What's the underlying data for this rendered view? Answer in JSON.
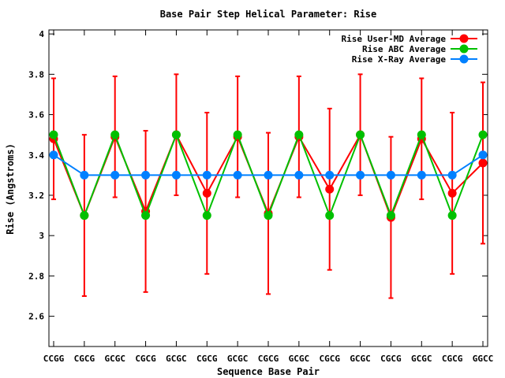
{
  "chart_data": {
    "type": "line",
    "title": "Base Pair Step Helical Parameter: Rise",
    "xlabel": "Sequence Base Pair",
    "ylabel": "Rise (Angstroms)",
    "categories": [
      "CCGG",
      "CGCG",
      "GCGC",
      "CGCG",
      "GCGC",
      "CGCG",
      "GCGC",
      "CGCG",
      "GCGC",
      "CGCG",
      "GCGC",
      "CGCG",
      "GCGC",
      "CGCG",
      "GGCC"
    ],
    "ylim": [
      2.45,
      4.02
    ],
    "yticks": [
      {
        "value": 2.6,
        "label": "2.6"
      },
      {
        "value": 2.8,
        "label": "2.8"
      },
      {
        "value": 3.0,
        "label": "3"
      },
      {
        "value": 3.2,
        "label": "3.2"
      },
      {
        "value": 3.4,
        "label": "3.4"
      },
      {
        "value": 3.6,
        "label": "3.6"
      },
      {
        "value": 3.8,
        "label": "3.8"
      },
      {
        "value": 4.0,
        "label": "4"
      }
    ],
    "legend_position": "top-right",
    "series": [
      {
        "name": "Rise User-MD Average",
        "color": "#ff0000",
        "values": [
          3.48,
          3.1,
          3.49,
          3.12,
          3.5,
          3.21,
          3.49,
          3.11,
          3.49,
          3.23,
          3.5,
          3.09,
          3.48,
          3.21,
          3.36
        ],
        "error_low": [
          3.18,
          2.7,
          3.19,
          2.72,
          3.2,
          2.81,
          3.19,
          2.71,
          3.19,
          2.83,
          3.2,
          2.69,
          3.18,
          2.81,
          2.96
        ],
        "error_high": [
          3.78,
          3.5,
          3.79,
          3.52,
          3.8,
          3.61,
          3.79,
          3.51,
          3.79,
          3.63,
          3.8,
          3.49,
          3.78,
          3.61,
          3.76
        ]
      },
      {
        "name": "Rise ABC Average",
        "color": "#00c000",
        "values": [
          3.5,
          3.1,
          3.5,
          3.1,
          3.5,
          3.1,
          3.5,
          3.1,
          3.5,
          3.1,
          3.5,
          3.1,
          3.5,
          3.1,
          3.5
        ]
      },
      {
        "name": "Rise X-Ray Average",
        "color": "#0080ff",
        "values": [
          3.4,
          3.3,
          3.3,
          3.3,
          3.3,
          3.3,
          3.3,
          3.3,
          3.3,
          3.3,
          3.3,
          3.3,
          3.3,
          3.3,
          3.4
        ]
      }
    ]
  }
}
